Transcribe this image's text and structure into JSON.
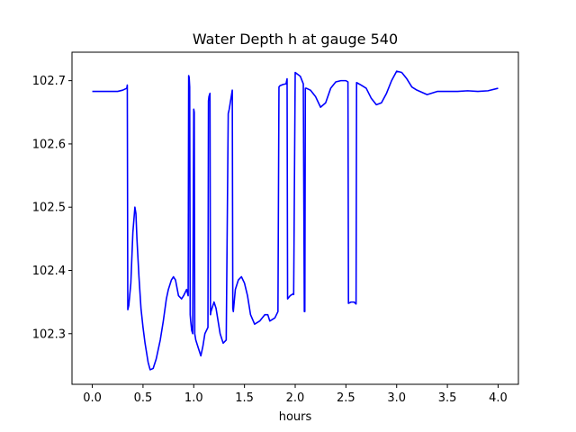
{
  "chart_data": {
    "type": "line",
    "title": "Water Depth h at gauge 540",
    "xlabel": "hours",
    "ylabel": "",
    "xlim": [
      -0.2,
      4.2
    ],
    "ylim": [
      102.22,
      102.745
    ],
    "xticks": [
      0.0,
      0.5,
      1.0,
      1.5,
      2.0,
      2.5,
      3.0,
      3.5,
      4.0
    ],
    "xtick_labels": [
      "0.0",
      "0.5",
      "1.0",
      "1.5",
      "2.0",
      "2.5",
      "3.0",
      "3.5",
      "4.0"
    ],
    "yticks": [
      102.3,
      102.4,
      102.5,
      102.6,
      102.7
    ],
    "ytick_labels": [
      "102.3",
      "102.4",
      "102.5",
      "102.6",
      "102.7"
    ],
    "grid": false,
    "series": [
      {
        "color": "#0000ff",
        "x": [
          0.0,
          0.1,
          0.2,
          0.25,
          0.3,
          0.34,
          0.345,
          0.35,
          0.36,
          0.38,
          0.4,
          0.42,
          0.43,
          0.44,
          0.46,
          0.48,
          0.5,
          0.52,
          0.55,
          0.57,
          0.6,
          0.63,
          0.67,
          0.7,
          0.73,
          0.75,
          0.78,
          0.8,
          0.82,
          0.85,
          0.88,
          0.9,
          0.93,
          0.945,
          0.95,
          0.955,
          0.96,
          0.965,
          0.97,
          0.98,
          0.99,
          1.0,
          1.005,
          1.01,
          1.02,
          1.04,
          1.07,
          1.09,
          1.11,
          1.14,
          1.145,
          1.15,
          1.16,
          1.165,
          1.17,
          1.2,
          1.22,
          1.24,
          1.26,
          1.29,
          1.32,
          1.34,
          1.35,
          1.36,
          1.38,
          1.385,
          1.39,
          1.41,
          1.44,
          1.47,
          1.5,
          1.53,
          1.56,
          1.6,
          1.65,
          1.7,
          1.73,
          1.75,
          1.8,
          1.83,
          1.84,
          1.85,
          1.88,
          1.91,
          1.92,
          1.925,
          1.95,
          1.98,
          1.985,
          2.0,
          2.05,
          2.08,
          2.09,
          2.095,
          2.1,
          2.105,
          2.11,
          2.15,
          2.2,
          2.25,
          2.3,
          2.35,
          2.4,
          2.45,
          2.5,
          2.52,
          2.525,
          2.55,
          2.58,
          2.6,
          2.605,
          2.65,
          2.7,
          2.75,
          2.8,
          2.85,
          2.9,
          2.95,
          3.0,
          3.05,
          3.1,
          3.15,
          3.2,
          3.3,
          3.4,
          3.5,
          3.6,
          3.7,
          3.8,
          3.9,
          4.0
        ],
        "y": [
          102.683,
          102.683,
          102.683,
          102.683,
          102.685,
          102.688,
          102.693,
          102.338,
          102.345,
          102.38,
          102.46,
          102.5,
          102.49,
          102.45,
          102.39,
          102.34,
          102.31,
          102.285,
          102.255,
          102.243,
          102.245,
          102.26,
          102.29,
          102.32,
          102.355,
          102.37,
          102.385,
          102.39,
          102.385,
          102.36,
          102.355,
          102.36,
          102.37,
          102.36,
          102.708,
          102.705,
          102.69,
          102.33,
          102.32,
          102.305,
          102.3,
          102.655,
          102.65,
          102.3,
          102.29,
          102.28,
          102.265,
          102.28,
          102.3,
          102.31,
          102.668,
          102.675,
          102.68,
          102.33,
          102.335,
          102.35,
          102.34,
          102.32,
          102.3,
          102.285,
          102.29,
          102.648,
          102.655,
          102.665,
          102.685,
          102.34,
          102.335,
          102.37,
          102.385,
          102.39,
          102.38,
          102.36,
          102.33,
          102.315,
          102.32,
          102.33,
          102.33,
          102.32,
          102.325,
          102.335,
          102.69,
          102.692,
          102.694,
          102.695,
          102.703,
          102.355,
          102.36,
          102.363,
          102.362,
          102.713,
          102.707,
          102.695,
          102.335,
          102.335,
          102.688,
          102.688,
          102.688,
          102.685,
          102.675,
          102.658,
          102.665,
          102.688,
          102.698,
          102.7,
          102.7,
          102.698,
          102.348,
          102.35,
          102.35,
          102.347,
          102.697,
          102.693,
          102.688,
          102.672,
          102.662,
          102.665,
          102.68,
          102.7,
          102.715,
          102.713,
          102.703,
          102.69,
          102.685,
          102.678,
          102.683,
          102.683,
          102.683,
          102.684,
          102.683,
          102.684,
          102.688
        ]
      }
    ]
  }
}
